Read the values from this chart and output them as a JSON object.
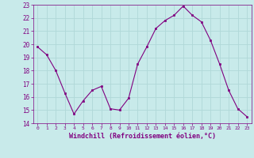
{
  "x": [
    0,
    1,
    2,
    3,
    4,
    5,
    6,
    7,
    8,
    9,
    10,
    11,
    12,
    13,
    14,
    15,
    16,
    17,
    18,
    19,
    20,
    21,
    22,
    23
  ],
  "y": [
    19.8,
    19.2,
    18.0,
    16.3,
    14.7,
    15.7,
    16.5,
    16.8,
    15.1,
    15.0,
    15.9,
    18.5,
    19.8,
    21.2,
    21.8,
    22.2,
    22.9,
    22.2,
    21.7,
    20.3,
    18.5,
    16.5,
    15.1,
    14.5
  ],
  "xlabel": "Windchill (Refroidissement éolien,°C)",
  "ylim": [
    14,
    23
  ],
  "xlim_min": -0.5,
  "xlim_max": 23.5,
  "yticks": [
    14,
    15,
    16,
    17,
    18,
    19,
    20,
    21,
    22,
    23
  ],
  "xticks": [
    0,
    1,
    2,
    3,
    4,
    5,
    6,
    7,
    8,
    9,
    10,
    11,
    12,
    13,
    14,
    15,
    16,
    17,
    18,
    19,
    20,
    21,
    22,
    23
  ],
  "line_color": "#800080",
  "marker_color": "#800080",
  "bg_color": "#c8eaea",
  "grid_color": "#b0d8d8",
  "tick_color": "#800080",
  "label_color": "#800080",
  "spine_color": "#800080"
}
